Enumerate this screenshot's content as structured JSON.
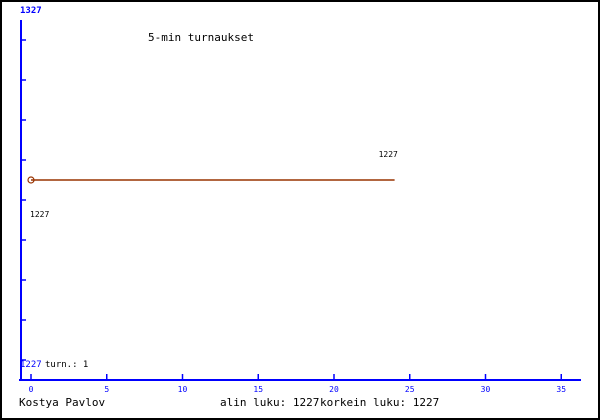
{
  "chart_data": {
    "type": "line",
    "title": "5-min turnaukset",
    "y_top_label": "1327",
    "y_bottom_label": "1227",
    "count_label": "turn.: 1",
    "x_ticks": [
      0,
      5,
      10,
      15,
      20,
      25,
      30,
      35
    ],
    "xlim": [
      0,
      36
    ],
    "series": [
      {
        "x": [
          0,
          24
        ],
        "y": [
          1227,
          1227
        ],
        "color": "#993300"
      }
    ],
    "point_labels": [
      {
        "x": 0,
        "text": "1227",
        "position": "below"
      },
      {
        "x": 24,
        "text": "1227",
        "position": "above"
      }
    ],
    "axis_color": "#0000ff"
  },
  "footer": {
    "author": "Kostya Pavlov",
    "min_label": "alin luku: 1227",
    "max_label": "korkein luku: 1227"
  }
}
